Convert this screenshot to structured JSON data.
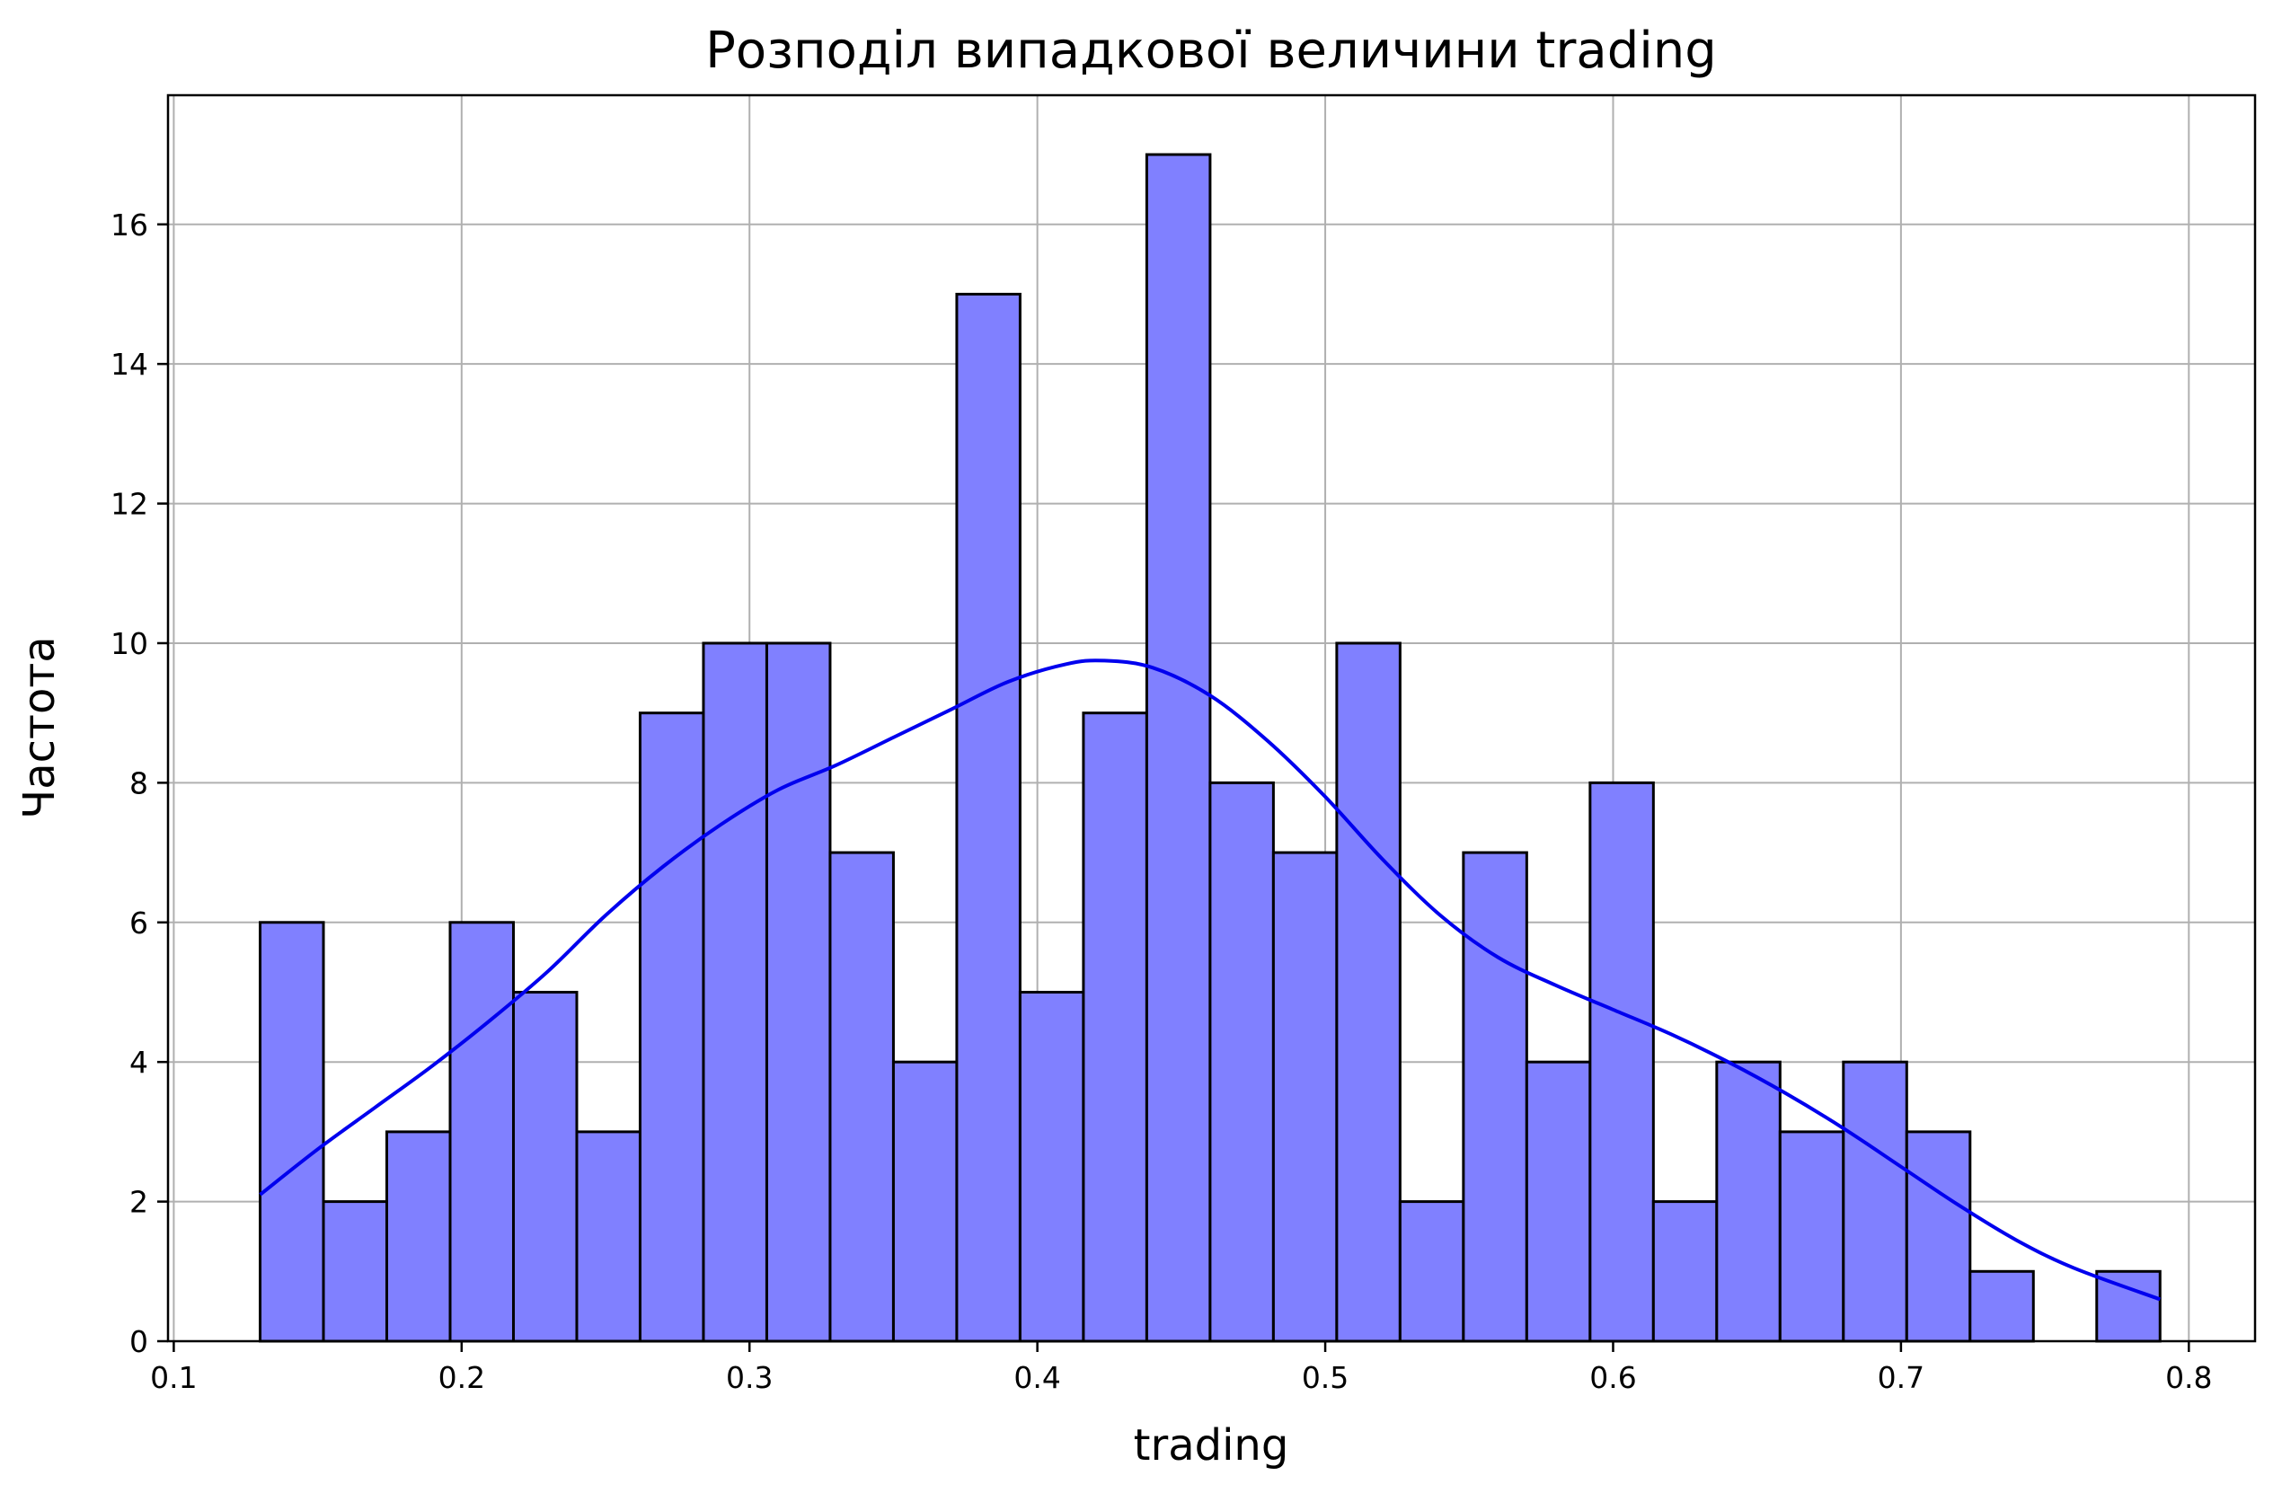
{
  "chart_data": {
    "type": "bar",
    "title": "Розподіл випадкової величини trading",
    "xlabel": "trading",
    "ylabel": "Частота",
    "xlim": [
      0.098,
      0.823
    ],
    "ylim": [
      0,
      17.85
    ],
    "xticks": [
      "0.1",
      "0.2",
      "0.3",
      "0.4",
      "0.5",
      "0.6",
      "0.7",
      "0.8"
    ],
    "yticks": [
      "0",
      "2",
      "4",
      "6",
      "8",
      "10",
      "12",
      "14",
      "16"
    ],
    "grid": true,
    "bins": {
      "start": 0.13,
      "end": 0.79,
      "count": 30,
      "edges": [
        0.13,
        0.152,
        0.174,
        0.196,
        0.218,
        0.24,
        0.262,
        0.284,
        0.306,
        0.328,
        0.35,
        0.372,
        0.394,
        0.416,
        0.438,
        0.46,
        0.482,
        0.504,
        0.526,
        0.548,
        0.57,
        0.592,
        0.614,
        0.636,
        0.658,
        0.68,
        0.702,
        0.724,
        0.746,
        0.768,
        0.79
      ]
    },
    "values": [
      6,
      2,
      3,
      6,
      5,
      3,
      9,
      10,
      10,
      7,
      4,
      15,
      5,
      9,
      17,
      8,
      7,
      10,
      2,
      7,
      4,
      8,
      2,
      4,
      3,
      4,
      3,
      1,
      0,
      1
    ],
    "kde": {
      "x": [
        0.13,
        0.15,
        0.17,
        0.19,
        0.21,
        0.23,
        0.25,
        0.27,
        0.29,
        0.31,
        0.33,
        0.35,
        0.37,
        0.39,
        0.41,
        0.423,
        0.44,
        0.46,
        0.48,
        0.5,
        0.52,
        0.54,
        0.56,
        0.58,
        0.6,
        0.62,
        0.64,
        0.66,
        0.68,
        0.7,
        0.72,
        0.74,
        0.76,
        0.79
      ],
      "y": [
        2.1,
        2.75,
        3.35,
        3.95,
        4.6,
        5.3,
        6.1,
        6.8,
        7.4,
        7.9,
        8.25,
        8.65,
        9.05,
        9.45,
        9.7,
        9.75,
        9.65,
        9.25,
        8.6,
        7.8,
        6.9,
        6.1,
        5.5,
        5.1,
        4.75,
        4.4,
        4.0,
        3.55,
        3.05,
        2.5,
        1.95,
        1.45,
        1.05,
        0.6
      ]
    },
    "colors": {
      "bar_fill": "#8080ff",
      "bar_edge": "#000000",
      "kde_line": "#0000ee",
      "grid": "#b0b0b0"
    }
  }
}
